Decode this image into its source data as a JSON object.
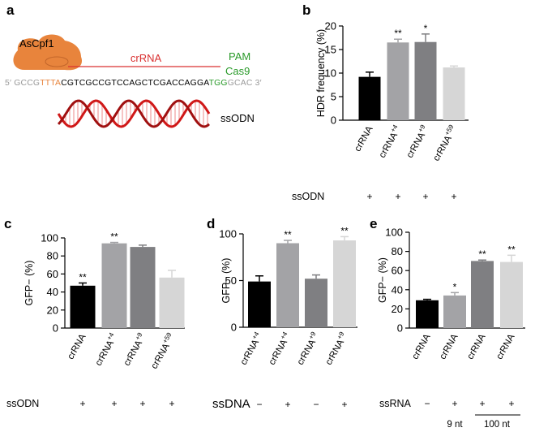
{
  "schematic": {
    "panel_label": "a",
    "protein": "AsCpf1",
    "guide": "crRNA",
    "pam": "PAM",
    "cas9": "Cas9",
    "sequence": [
      "5′ GCCG",
      "TTTA",
      "CGTCGCCGTCCAGCTCGACCAGGA",
      "TGG",
      "GCAC 3′"
    ],
    "donor": "ssODN"
  },
  "chart_data": [
    {
      "type": "bar",
      "panel_label": "b",
      "y_label": "HDR frequency (%)",
      "categories": [
        "crRNA",
        "crRNA",
        "crRNA",
        "crRNA"
      ],
      "category_superscripts": [
        null,
        "+4",
        "+9",
        "+59"
      ],
      "values": [
        9.2,
        16.5,
        16.6,
        11.2
      ],
      "errors": [
        1.0,
        0.7,
        1.7,
        0.3
      ],
      "annotations": [
        null,
        "**",
        "*",
        null
      ],
      "colors": [
        "#000000",
        "#a3a3a6",
        "#7f7f82",
        "#d6d6d6"
      ],
      "ylim": [
        0,
        20
      ],
      "yticks": [
        0,
        5,
        10,
        15,
        20
      ],
      "condition_label": "ssODN",
      "conditions": [
        "+",
        "+",
        "+",
        "+"
      ]
    },
    {
      "type": "bar",
      "panel_label": "c",
      "y_label": "GFP− (%)",
      "categories": [
        "crRNA",
        "crRNA",
        "crRNA",
        "crRNA"
      ],
      "category_superscripts": [
        null,
        "+4",
        "+9",
        "+59"
      ],
      "values": [
        47,
        94,
        90,
        56
      ],
      "errors": [
        3,
        1,
        2,
        8
      ],
      "annotations": [
        "**",
        "**",
        null,
        null
      ],
      "colors": [
        "#000000",
        "#a3a3a6",
        "#7f7f82",
        "#d6d6d6"
      ],
      "ylim": [
        0,
        100
      ],
      "yticks": [
        0,
        20,
        40,
        60,
        80,
        100
      ],
      "condition_label": "ssODN",
      "conditions": [
        "+",
        "+",
        "+",
        "+"
      ]
    },
    {
      "type": "bar",
      "panel_label": "d",
      "y_label": "GFP− (%)",
      "categories": [
        "crRNA",
        "crRNA",
        "crRNA",
        "crRNA"
      ],
      "category_superscripts": [
        "+4",
        "+4",
        "+9",
        "+9"
      ],
      "values": [
        49,
        90,
        52,
        93
      ],
      "errors": [
        6,
        3,
        4,
        4
      ],
      "annotations": [
        null,
        "**",
        null,
        "**"
      ],
      "colors": [
        "#000000",
        "#a3a3a6",
        "#7f7f82",
        "#d6d6d6"
      ],
      "ylim": [
        0,
        100
      ],
      "yticks": [
        0,
        50,
        100
      ],
      "condition_label": "ssDNA",
      "conditions": [
        "−",
        "+",
        "−",
        "+"
      ]
    },
    {
      "type": "bar",
      "panel_label": "e",
      "y_label": "GFP− (%)",
      "categories": [
        "crRNA",
        "crRNA",
        "crRNA",
        "crRNA"
      ],
      "values": [
        29,
        34,
        70,
        69
      ],
      "errors": [
        1,
        3,
        1,
        7
      ],
      "annotations": [
        null,
        "*",
        "**",
        "**"
      ],
      "colors": [
        "#000000",
        "#a3a3a6",
        "#7f7f82",
        "#d6d6d6"
      ],
      "ylim": [
        0,
        100
      ],
      "yticks": [
        0,
        20,
        40,
        60,
        80,
        100
      ],
      "condition_label": "ssRNA",
      "conditions": [
        "−",
        "+",
        "+",
        "+"
      ],
      "group_labels": [
        "9 nt",
        "100 nt"
      ]
    }
  ]
}
